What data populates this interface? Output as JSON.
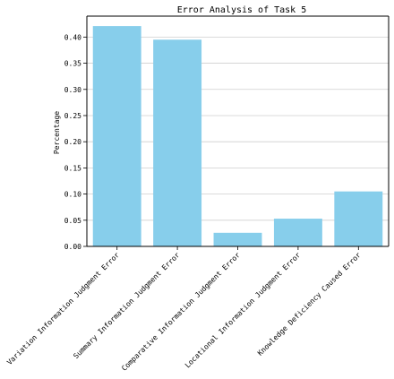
{
  "chart_data": {
    "type": "bar",
    "title": "Error Analysis of Task 5",
    "xlabel": "",
    "ylabel": "Percentage",
    "categories": [
      "Variation Information Judgment Error",
      "Summary Information Judgment Error",
      "Comparative Information Judgment Error",
      "Locational Information Judgment Error",
      "Knowledge Deficiency Caused Error"
    ],
    "values": [
      0.421,
      0.395,
      0.026,
      0.053,
      0.105
    ],
    "ylim": [
      0,
      0.44
    ],
    "yticks": [
      0.0,
      0.05,
      0.1,
      0.15,
      0.2,
      0.25,
      0.3,
      0.35,
      0.4
    ],
    "ytick_labels": [
      "0.00",
      "0.05",
      "0.10",
      "0.15",
      "0.20",
      "0.25",
      "0.30",
      "0.35",
      "0.40"
    ],
    "bar_color": "#87ceeb",
    "grid": "horizontal",
    "legend": "none"
  }
}
